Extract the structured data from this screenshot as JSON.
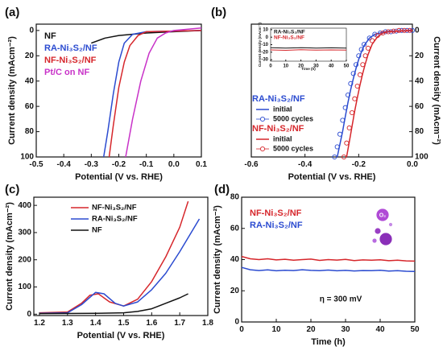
{
  "chart_data": [
    {
      "type": "line",
      "panel": "(a)",
      "xlabel": "Potential (V vs. RHE)",
      "ylabel": "Current density (mAcm⁻²)",
      "xlim": [
        -0.5,
        0.1
      ],
      "xticks": [
        -0.5,
        -0.4,
        -0.3,
        -0.2,
        -0.1,
        {
          "value": 0,
          "label": "0.0"
        },
        0.1
      ],
      "ylim": [
        100,
        -5
      ],
      "yticks": [
        0,
        20,
        40,
        60,
        80,
        100
      ],
      "y_axis_side": "left",
      "legend": "upper left",
      "legend_style": "text",
      "series": [
        {
          "name": "NF",
          "color": "#111111",
          "x": [
            -0.3,
            -0.25,
            -0.2,
            -0.1,
            0,
            0.1
          ],
          "values": [
            10,
            6,
            4,
            2,
            1,
            0
          ]
        },
        {
          "name": "RA-Ni₃S₂/NF",
          "color": "#2b4bd0",
          "x": [
            -0.255,
            -0.24,
            -0.22,
            -0.2,
            -0.18,
            -0.15,
            -0.1,
            0.1
          ],
          "values": [
            100,
            80,
            50,
            25,
            10,
            3,
            1,
            0
          ]
        },
        {
          "name": "NF-Ni₃S₂/NF",
          "color": "#d6262b",
          "x": [
            -0.235,
            -0.22,
            -0.2,
            -0.18,
            -0.16,
            -0.13,
            -0.1,
            0.1
          ],
          "values": [
            100,
            75,
            45,
            25,
            12,
            4,
            1,
            0
          ]
        },
        {
          "name": "Pt/C on NF",
          "color": "#c832c8",
          "x": [
            -0.175,
            -0.15,
            -0.12,
            -0.09,
            -0.06,
            -0.03,
            0,
            0.1
          ],
          "values": [
            100,
            70,
            40,
            18,
            6,
            2,
            0,
            -2
          ]
        }
      ]
    },
    {
      "type": "line",
      "panel": "(b)",
      "xlabel": "Potential (V vs. RHE)",
      "ylabel": "Current density (mAcm⁻²)",
      "xlim": [
        -0.6,
        0
      ],
      "xticks": [
        -0.6,
        -0.4,
        -0.2,
        {
          "value": 0,
          "label": "0.0"
        }
      ],
      "ylim": [
        100,
        -5
      ],
      "yticks": [
        0,
        20,
        40,
        60,
        80,
        100
      ],
      "y_axis_side": "right",
      "legend": "center left",
      "legend_style": "groups",
      "groups": [
        {
          "name": "RA-Ni₃S₂/NF",
          "color": "#2b4bd0",
          "series": [
            {
              "name": "initial",
              "style": "line",
              "x": [
                -0.28,
                -0.27,
                -0.26,
                -0.25,
                -0.24,
                -0.23,
                -0.22,
                -0.21,
                -0.2,
                -0.19,
                -0.18,
                -0.16,
                -0.14,
                -0.12,
                -0.1,
                -0.05,
                0
              ],
              "values": [
                100,
                90,
                80,
                68,
                57,
                47,
                38,
                30,
                23,
                17,
                12,
                6,
                3,
                2,
                1,
                0.5,
                0
              ]
            },
            {
              "name": "5000 cycles",
              "style": "markers",
              "x": [
                -0.29,
                -0.28,
                -0.27,
                -0.26,
                -0.25,
                -0.24,
                -0.23,
                -0.22,
                -0.21,
                -0.2,
                -0.19,
                -0.18,
                -0.16,
                -0.14,
                -0.12,
                -0.1,
                -0.08,
                -0.06,
                -0.04,
                -0.02,
                0
              ],
              "values": [
                100,
                92,
                82,
                71,
                61,
                51,
                42,
                34,
                27,
                20,
                15,
                11,
                6,
                3,
                2,
                1,
                1,
                0.5,
                0,
                0,
                0
              ]
            }
          ]
        },
        {
          "name": "NF-Ni₃S₂/NF",
          "color": "#d6262b",
          "series": [
            {
              "name": "initial",
              "style": "line",
              "x": [
                -0.245,
                -0.235,
                -0.225,
                -0.215,
                -0.205,
                -0.195,
                -0.185,
                -0.175,
                -0.165,
                -0.15,
                -0.13,
                -0.11,
                -0.09,
                -0.05,
                0
              ],
              "values": [
                100,
                88,
                76,
                64,
                53,
                43,
                34,
                26,
                19,
                11,
                5,
                2,
                1,
                0.5,
                0
              ]
            },
            {
              "name": "5000 cycles",
              "style": "markers",
              "x": [
                -0.255,
                -0.245,
                -0.235,
                -0.225,
                -0.215,
                -0.205,
                -0.195,
                -0.185,
                -0.175,
                -0.165,
                -0.15,
                -0.13,
                -0.11,
                -0.09,
                -0.07,
                -0.05,
                -0.03,
                -0.01
              ],
              "values": [
                100,
                89,
                77,
                65,
                54,
                44,
                35,
                27,
                20,
                14,
                8,
                4,
                2,
                1,
                0.5,
                0,
                0,
                0
              ]
            }
          ]
        }
      ],
      "inset": {
        "xlabel": "Time (h)",
        "ylabel": "Current density (mAcm⁻²)",
        "xlim": [
          0,
          50
        ],
        "xticks": [
          0,
          10,
          20,
          30,
          40,
          50
        ],
        "ylim": [
          -32,
          12
        ],
        "yticks": [
          10,
          0,
          -10,
          -20,
          -30
        ],
        "series": [
          {
            "name": "RA-Ni₃S₂/NF",
            "color": "#111111",
            "x": [
              0,
              10,
              20,
              30,
              40,
              50
            ],
            "values": [
              -14,
              -14.5,
              -14,
              -14.5,
              -14.2,
              -14.5
            ]
          },
          {
            "name": "NF-Ni₃S₂/NF",
            "color": "#d6262b",
            "x": [
              0,
              10,
              20,
              30,
              40,
              50
            ],
            "values": [
              -17,
              -17.5,
              -16.8,
              -17.2,
              -17,
              -17.3
            ]
          }
        ]
      }
    },
    {
      "type": "line",
      "panel": "(c)",
      "xlabel": "Potential (V vs. RHE)",
      "ylabel": "Current density (mAcm⁻²)",
      "xlim": [
        1.18,
        1.8
      ],
      "xticks": [
        1.2,
        1.3,
        1.4,
        1.5,
        1.6,
        1.7,
        1.8
      ],
      "ylim": [
        -5,
        430
      ],
      "yticks": [
        0,
        100,
        200,
        300,
        400
      ],
      "y_axis_side": "left",
      "legend": "upper left",
      "legend_style": "lines",
      "series": [
        {
          "name": "NF-Ni₃S₂/NF",
          "color": "#d6262b",
          "x": [
            1.2,
            1.3,
            1.35,
            1.38,
            1.41,
            1.45,
            1.5,
            1.55,
            1.6,
            1.65,
            1.7,
            1.73
          ],
          "values": [
            5,
            8,
            40,
            70,
            75,
            45,
            30,
            55,
            120,
            210,
            320,
            415
          ]
        },
        {
          "name": "RA-Ni₃S₂/NF",
          "color": "#2b4bd0",
          "x": [
            1.2,
            1.3,
            1.35,
            1.4,
            1.43,
            1.47,
            1.5,
            1.55,
            1.6,
            1.65,
            1.7,
            1.77
          ],
          "values": [
            3,
            5,
            35,
            80,
            75,
            40,
            30,
            45,
            90,
            150,
            230,
            350
          ]
        },
        {
          "name": "NF",
          "color": "#111111",
          "x": [
            1.2,
            1.4,
            1.5,
            1.55,
            1.6,
            1.65,
            1.7,
            1.73
          ],
          "values": [
            2,
            3,
            5,
            10,
            20,
            40,
            60,
            75
          ]
        }
      ]
    },
    {
      "type": "line",
      "panel": "(d)",
      "xlabel": "Time (h)",
      "ylabel": "Current density (mAcm⁻²)",
      "xlim": [
        0,
        50
      ],
      "xticks": [
        0,
        10,
        20,
        30,
        40,
        50
      ],
      "ylim": [
        0,
        80
      ],
      "yticks": [
        0,
        20,
        40,
        60,
        80
      ],
      "y_axis_side": "left",
      "legend": "upper left",
      "legend_style": "text",
      "annotation": "η = 300 mV",
      "icon_label": "O₂",
      "series": [
        {
          "name": "NF-Ni₃S₂/NF",
          "color": "#d6262b",
          "x": [
            0,
            2.5,
            5,
            7.5,
            10,
            12.5,
            15,
            17.5,
            20,
            22.5,
            25,
            27.5,
            30,
            32.5,
            35,
            37.5,
            40,
            42.5,
            45,
            47.5,
            50
          ],
          "values": [
            42,
            40.5,
            40,
            40.5,
            39.8,
            40.2,
            39.6,
            40,
            40.3,
            39.5,
            40,
            39.7,
            40.1,
            39.4,
            39.8,
            39.6,
            39.9,
            39.3,
            39.6,
            39.2,
            39
          ]
        },
        {
          "name": "RA-Ni₃S₂/NF",
          "color": "#2b4bd0",
          "x": [
            0,
            2.5,
            5,
            7.5,
            10,
            12.5,
            15,
            17.5,
            20,
            22.5,
            25,
            27.5,
            30,
            32.5,
            35,
            37.5,
            40,
            42.5,
            45,
            47.5,
            50
          ],
          "values": [
            35,
            33.5,
            33,
            33.4,
            32.8,
            33.2,
            33,
            33.5,
            33.1,
            32.9,
            33.3,
            32.8,
            33.1,
            32.7,
            33,
            32.9,
            33.2,
            32.6,
            32.9,
            32.5,
            32.4
          ]
        }
      ]
    }
  ]
}
